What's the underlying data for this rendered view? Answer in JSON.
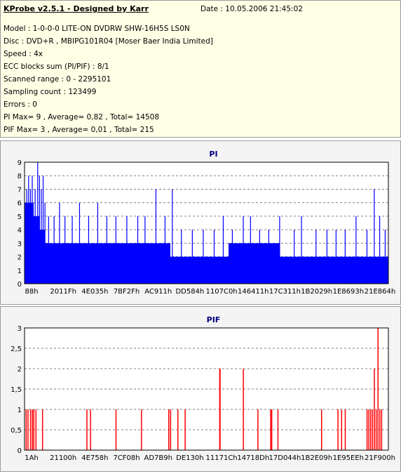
{
  "header": {
    "title": "KProbe v2.5.1 - Designed by Karr",
    "date": "Date : 10.05.2006 21:45:02",
    "lines": [
      "Model : 1-0-0-0 LITE-ON DVDRW SHW-16H5S  LS0N",
      "Disc : DVD+R , MBIPG101R04 [Moser Baer India Limited]",
      "Speed : 4x",
      "ECC blocks sum (PI/PIF) : 8/1",
      "Scanned range : 0 - 2295101",
      "Sampling count : 123499",
      "Errors : 0",
      "PI Max= 9 , Average= 0,82 , Total= 14508",
      "PIF Max= 3 , Average= 0,01 , Total= 215"
    ]
  },
  "colors": {
    "pi_bar": "#0000ff",
    "pif_bar": "#ff0000",
    "grid": "#808080",
    "title": "#000080"
  },
  "chart_data": [
    {
      "type": "bar",
      "title": "PI",
      "ylim": [
        0,
        9
      ],
      "yticks": [
        "0",
        "1",
        "2",
        "3",
        "4",
        "5",
        "6",
        "7",
        "8",
        "9"
      ],
      "xticks": [
        "88h",
        "2011Fh",
        "4E035h",
        "7BF2Fh",
        "AC911h",
        "DD584h",
        "1107C0h",
        "146411h",
        "17C311h",
        "1B2029h",
        "1E8693h",
        "21E864h"
      ],
      "grid": true,
      "baseline": [
        {
          "x": 0.0,
          "v": 6
        },
        {
          "x": 0.012,
          "v": 6
        },
        {
          "x": 0.025,
          "v": 5
        },
        {
          "x": 0.04,
          "v": 4
        },
        {
          "x": 0.055,
          "v": 3
        },
        {
          "x": 0.07,
          "v": 3
        },
        {
          "x": 0.15,
          "v": 3
        },
        {
          "x": 0.25,
          "v": 3
        },
        {
          "x": 0.38,
          "v": 3
        },
        {
          "x": 0.4,
          "v": 2
        },
        {
          "x": 0.45,
          "v": 2
        },
        {
          "x": 0.52,
          "v": 2
        },
        {
          "x": 0.55,
          "v": 2
        },
        {
          "x": 0.56,
          "v": 3
        },
        {
          "x": 0.7,
          "v": 2
        },
        {
          "x": 0.85,
          "v": 2
        },
        {
          "x": 1.0,
          "v": 2
        }
      ],
      "peaks": [
        {
          "x": 0.005,
          "v": 7
        },
        {
          "x": 0.01,
          "v": 8
        },
        {
          "x": 0.015,
          "v": 7
        },
        {
          "x": 0.02,
          "v": 8
        },
        {
          "x": 0.028,
          "v": 7
        },
        {
          "x": 0.035,
          "v": 9
        },
        {
          "x": 0.04,
          "v": 8
        },
        {
          "x": 0.045,
          "v": 7
        },
        {
          "x": 0.05,
          "v": 8
        },
        {
          "x": 0.055,
          "v": 6
        },
        {
          "x": 0.065,
          "v": 5
        },
        {
          "x": 0.08,
          "v": 5
        },
        {
          "x": 0.095,
          "v": 6
        },
        {
          "x": 0.11,
          "v": 5
        },
        {
          "x": 0.13,
          "v": 5
        },
        {
          "x": 0.15,
          "v": 6
        },
        {
          "x": 0.175,
          "v": 5
        },
        {
          "x": 0.2,
          "v": 6
        },
        {
          "x": 0.225,
          "v": 5
        },
        {
          "x": 0.25,
          "v": 5
        },
        {
          "x": 0.28,
          "v": 5
        },
        {
          "x": 0.31,
          "v": 5
        },
        {
          "x": 0.33,
          "v": 5
        },
        {
          "x": 0.36,
          "v": 7
        },
        {
          "x": 0.385,
          "v": 5
        },
        {
          "x": 0.405,
          "v": 7
        },
        {
          "x": 0.43,
          "v": 4
        },
        {
          "x": 0.46,
          "v": 4
        },
        {
          "x": 0.49,
          "v": 4
        },
        {
          "x": 0.52,
          "v": 4
        },
        {
          "x": 0.545,
          "v": 5
        },
        {
          "x": 0.57,
          "v": 4
        },
        {
          "x": 0.6,
          "v": 5
        },
        {
          "x": 0.62,
          "v": 5
        },
        {
          "x": 0.645,
          "v": 4
        },
        {
          "x": 0.67,
          "v": 4
        },
        {
          "x": 0.7,
          "v": 5
        },
        {
          "x": 0.74,
          "v": 4
        },
        {
          "x": 0.76,
          "v": 5
        },
        {
          "x": 0.8,
          "v": 4
        },
        {
          "x": 0.83,
          "v": 4
        },
        {
          "x": 0.855,
          "v": 4
        },
        {
          "x": 0.88,
          "v": 4
        },
        {
          "x": 0.91,
          "v": 5
        },
        {
          "x": 0.94,
          "v": 4
        },
        {
          "x": 0.96,
          "v": 7
        },
        {
          "x": 0.975,
          "v": 5
        },
        {
          "x": 0.99,
          "v": 4
        }
      ]
    },
    {
      "type": "bar",
      "title": "PIF",
      "ylim": [
        0,
        3
      ],
      "yticks": [
        "0",
        "0,5",
        "1",
        "1,5",
        "2",
        "2,5",
        "3"
      ],
      "xticks": [
        "1Ah",
        "21100h",
        "4E758h",
        "7CF08h",
        "AD7B9h",
        "DE130h",
        "11171Ch",
        "14718Dh",
        "17D044h",
        "1B2E09h",
        "1E95EEh",
        "21F900h"
      ],
      "grid": true,
      "bars": [
        {
          "x": 0.003,
          "v": 1
        },
        {
          "x": 0.008,
          "v": 1
        },
        {
          "x": 0.015,
          "v": 1
        },
        {
          "x": 0.02,
          "v": 1
        },
        {
          "x": 0.024,
          "v": 1
        },
        {
          "x": 0.03,
          "v": 1
        },
        {
          "x": 0.048,
          "v": 1
        },
        {
          "x": 0.17,
          "v": 1
        },
        {
          "x": 0.18,
          "v": 1
        },
        {
          "x": 0.25,
          "v": 1
        },
        {
          "x": 0.32,
          "v": 1
        },
        {
          "x": 0.395,
          "v": 1
        },
        {
          "x": 0.4,
          "v": 1
        },
        {
          "x": 0.42,
          "v": 1
        },
        {
          "x": 0.44,
          "v": 1
        },
        {
          "x": 0.535,
          "v": 2
        },
        {
          "x": 0.536,
          "v": 2
        },
        {
          "x": 0.6,
          "v": 2
        },
        {
          "x": 0.64,
          "v": 1
        },
        {
          "x": 0.675,
          "v": 1
        },
        {
          "x": 0.678,
          "v": 1
        },
        {
          "x": 0.695,
          "v": 1
        },
        {
          "x": 0.815,
          "v": 1
        },
        {
          "x": 0.86,
          "v": 1
        },
        {
          "x": 0.87,
          "v": 1
        },
        {
          "x": 0.88,
          "v": 1
        },
        {
          "x": 0.94,
          "v": 1
        },
        {
          "x": 0.945,
          "v": 1
        },
        {
          "x": 0.95,
          "v": 1
        },
        {
          "x": 0.955,
          "v": 1
        },
        {
          "x": 0.96,
          "v": 2
        },
        {
          "x": 0.965,
          "v": 1
        },
        {
          "x": 0.97,
          "v": 3
        },
        {
          "x": 0.975,
          "v": 1
        },
        {
          "x": 0.98,
          "v": 1
        }
      ]
    }
  ]
}
